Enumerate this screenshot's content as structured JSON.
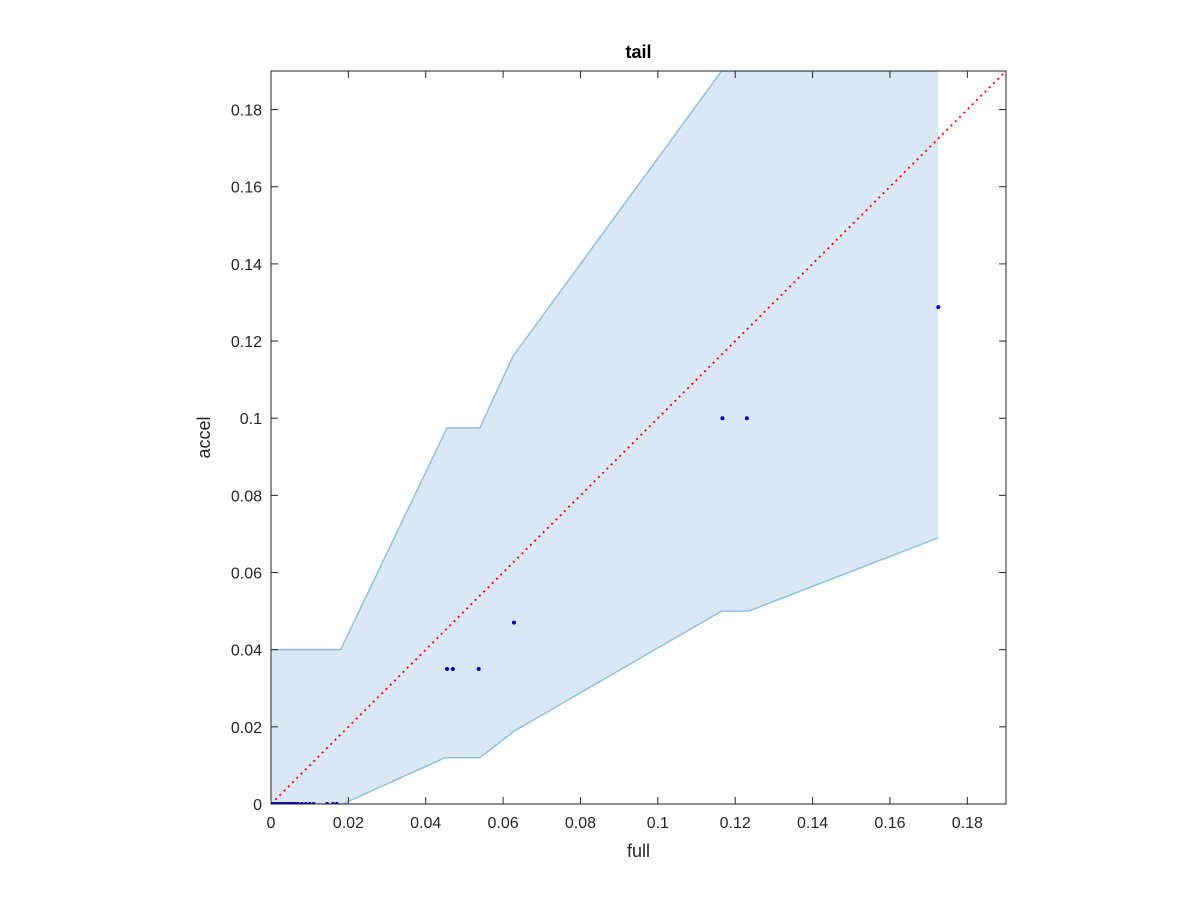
{
  "chart_data": {
    "type": "scatter",
    "title": "tail",
    "xlabel": "full",
    "ylabel": "accel",
    "xlim": [
      0,
      0.19
    ],
    "ylim": [
      0,
      0.19
    ],
    "xticks": [
      0,
      0.02,
      0.04,
      0.06,
      0.08,
      0.1,
      0.12,
      0.14,
      0.16,
      0.18
    ],
    "yticks": [
      0,
      0.02,
      0.04,
      0.06,
      0.08,
      0.1,
      0.12,
      0.14,
      0.16,
      0.18
    ],
    "xtick_labels": [
      "0",
      "0.02",
      "0.04",
      "0.06",
      "0.08",
      "0.1",
      "0.12",
      "0.14",
      "0.16",
      "0.18"
    ],
    "ytick_labels": [
      "0",
      "0.02",
      "0.04",
      "0.06",
      "0.08",
      "0.1",
      "0.12",
      "0.14",
      "0.16",
      "0.18"
    ],
    "grid": false,
    "colors": {
      "points": "#0000cc",
      "band_fill": "#dae8f5",
      "band_edge": "#8dc0e0",
      "reference_line": "#ff0000",
      "axes": "#262626"
    },
    "band": {
      "upper": [
        [
          0,
          0.04
        ],
        [
          0.018,
          0.04
        ],
        [
          0.0455,
          0.0975
        ],
        [
          0.054,
          0.0975
        ],
        [
          0.0625,
          0.116
        ],
        [
          0.1165,
          0.19
        ],
        [
          0.1725,
          0.19
        ]
      ],
      "lower": [
        [
          0,
          0
        ],
        [
          0.0185,
          0
        ],
        [
          0.045,
          0.012
        ],
        [
          0.054,
          0.012
        ],
        [
          0.063,
          0.019
        ],
        [
          0.1165,
          0.05
        ],
        [
          0.1235,
          0.05
        ],
        [
          0.1725,
          0.069
        ]
      ]
    },
    "reference_line": [
      [
        0,
        0
      ],
      [
        0.19,
        0.19
      ]
    ],
    "points": [
      [
        0,
        0
      ],
      [
        0.0005,
        0
      ],
      [
        0.001,
        0
      ],
      [
        0.0015,
        0
      ],
      [
        0.002,
        0
      ],
      [
        0.0025,
        0
      ],
      [
        0.003,
        0
      ],
      [
        0.0035,
        0
      ],
      [
        0.004,
        0
      ],
      [
        0.0045,
        0
      ],
      [
        0.005,
        0
      ],
      [
        0.0055,
        0
      ],
      [
        0.006,
        0
      ],
      [
        0.0065,
        0
      ],
      [
        0.007,
        0
      ],
      [
        0.008,
        0
      ],
      [
        0.009,
        0
      ],
      [
        0.01,
        0
      ],
      [
        0.011,
        0
      ],
      [
        0.0145,
        0
      ],
      [
        0.016,
        0
      ],
      [
        0.017,
        0
      ],
      [
        0.0455,
        0.035
      ],
      [
        0.047,
        0.035
      ],
      [
        0.0537,
        0.035
      ],
      [
        0.0628,
        0.047
      ],
      [
        0.1167,
        0.1
      ],
      [
        0.123,
        0.1
      ],
      [
        0.1725,
        0.1288
      ]
    ]
  }
}
